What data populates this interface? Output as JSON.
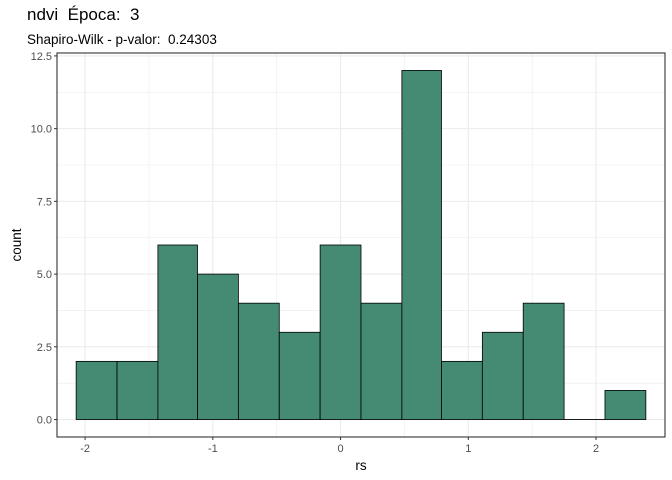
{
  "chart_data": {
    "type": "bar",
    "title": "ndvi  Época:  3",
    "subtitle": "Shapiro-Wilk - p-valor:  0.24303",
    "xlabel": "rs",
    "ylabel": "count",
    "bin_edges": [
      -2.07,
      -1.75,
      -1.43,
      -1.12,
      -0.8,
      -0.48,
      -0.16,
      0.16,
      0.48,
      0.79,
      1.11,
      1.43,
      1.75,
      2.07,
      2.39
    ],
    "values": [
      2,
      2,
      6,
      5,
      4,
      3,
      6,
      4,
      12,
      2,
      3,
      4,
      0,
      1
    ],
    "xlim": [
      -2.22,
      2.54
    ],
    "ylim": [
      -0.6,
      12.6
    ],
    "x_ticks": [
      -2,
      -1,
      0,
      1,
      2
    ],
    "x_tick_labels": [
      "-2",
      "-1",
      "0",
      "1",
      "2"
    ],
    "y_ticks": [
      0,
      2.5,
      5,
      7.5,
      10,
      12.5
    ],
    "y_tick_labels": [
      "0.0",
      "2.5",
      "5.0",
      "7.5",
      "10.0",
      "12.5"
    ],
    "grid": true,
    "colors": {
      "fill": "#458b74",
      "outline": "#000000",
      "panel_border": "#333333",
      "grid": "#ebebeb"
    }
  }
}
